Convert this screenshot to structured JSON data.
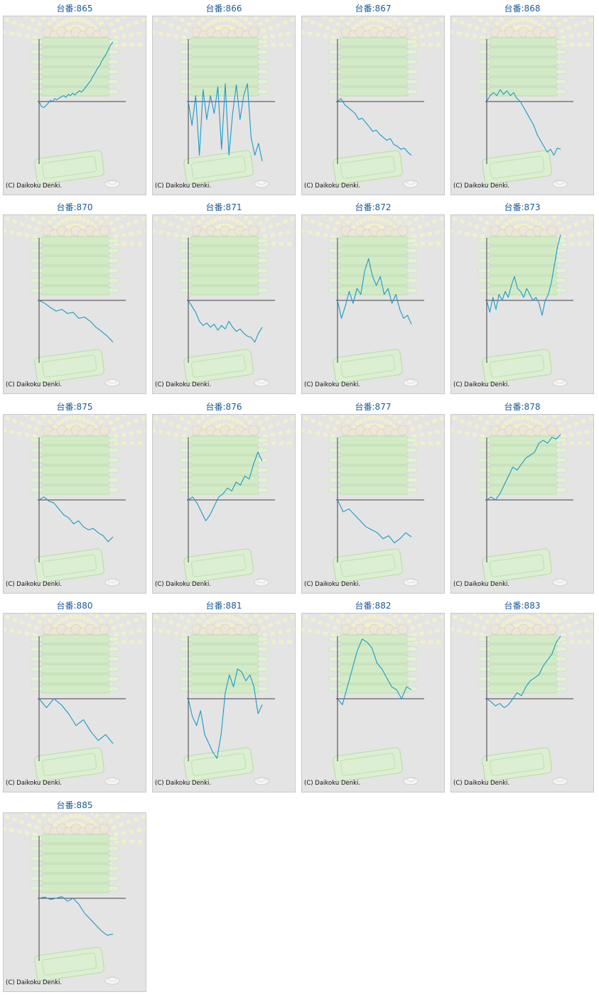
{
  "copyright": "(C) Daikoku Denki.",
  "colors": {
    "title": "#1a5a9a",
    "line": "#1a9ac8",
    "axis": "#404040",
    "panel": "#e4e4e4"
  },
  "chart_data": [
    {
      "type": "line",
      "title": "台番:865",
      "values": [
        0,
        -0.08,
        -0.1,
        -0.07,
        -0.03,
        0.02,
        0.0,
        0.05,
        0.03,
        0.06,
        0.08,
        0.1,
        0.07,
        0.12,
        0.1,
        0.14,
        0.11,
        0.15,
        0.18,
        0.16,
        0.2,
        0.25,
        0.3,
        0.35,
        0.42,
        0.48,
        0.55,
        0.6,
        0.68,
        0.74,
        0.8,
        0.88,
        0.95,
        1.0
      ]
    },
    {
      "type": "line",
      "title": "台番:866",
      "values": [
        0,
        -0.4,
        0.1,
        -0.9,
        0.2,
        -0.3,
        0.1,
        -0.2,
        0.25,
        -0.8,
        0.3,
        -0.9,
        -0.2,
        0.28,
        -0.3,
        0.1,
        0.3,
        -0.6,
        -0.9,
        -0.7,
        -1.0
      ]
    },
    {
      "type": "line",
      "title": "台番:867",
      "values": [
        0,
        0.05,
        -0.05,
        -0.1,
        -0.15,
        -0.2,
        -0.3,
        -0.28,
        -0.35,
        -0.42,
        -0.5,
        -0.48,
        -0.55,
        -0.6,
        -0.65,
        -0.62,
        -0.72,
        -0.75,
        -0.8,
        -0.78,
        -0.85,
        -0.9
      ]
    },
    {
      "type": "line",
      "title": "台番:868",
      "values": [
        0,
        0.1,
        0.15,
        0.1,
        0.2,
        0.12,
        0.18,
        0.1,
        0.15,
        0.05,
        0.0,
        -0.1,
        -0.2,
        -0.3,
        -0.4,
        -0.55,
        -0.65,
        -0.75,
        -0.85,
        -0.8,
        -0.9,
        -0.78,
        -0.8
      ]
    },
    {
      "type": "line",
      "title": "台番:870",
      "values": [
        0,
        -0.05,
        -0.12,
        -0.18,
        -0.15,
        -0.22,
        -0.2,
        -0.3,
        -0.28,
        -0.35,
        -0.45,
        -0.52,
        -0.6,
        -0.7
      ]
    },
    {
      "type": "line",
      "title": "台番:871",
      "values": [
        0,
        -0.1,
        -0.2,
        -0.35,
        -0.42,
        -0.38,
        -0.45,
        -0.4,
        -0.5,
        -0.42,
        -0.48,
        -0.35,
        -0.45,
        -0.52,
        -0.48,
        -0.55,
        -0.6,
        -0.62,
        -0.7,
        -0.55,
        -0.45
      ]
    },
    {
      "type": "line",
      "title": "台番:872",
      "values": [
        0,
        -0.3,
        -0.1,
        0.15,
        -0.05,
        0.2,
        0.1,
        0.5,
        0.7,
        0.4,
        0.25,
        0.4,
        0.1,
        0.2,
        -0.05,
        0.1,
        -0.15,
        -0.3,
        -0.25,
        -0.4
      ]
    },
    {
      "type": "line",
      "title": "台番:873",
      "values": [
        0,
        -0.2,
        0.05,
        -0.15,
        0.1,
        0.0,
        0.15,
        0.05,
        0.25,
        0.4,
        0.2,
        0.15,
        0.05,
        0.2,
        0.1,
        0.0,
        0.05,
        -0.05,
        -0.25,
        0.0,
        0.1,
        0.3,
        0.6,
        0.9,
        1.1
      ]
    },
    {
      "type": "line",
      "title": "台番:875",
      "values": [
        0,
        0.05,
        -0.02,
        -0.05,
        -0.15,
        -0.25,
        -0.3,
        -0.4,
        -0.35,
        -0.45,
        -0.5,
        -0.48,
        -0.55,
        -0.6,
        -0.7,
        -0.62
      ]
    },
    {
      "type": "line",
      "title": "台番:876",
      "values": [
        0,
        0.05,
        -0.05,
        -0.2,
        -0.35,
        -0.25,
        -0.1,
        0.05,
        0.1,
        0.2,
        0.15,
        0.3,
        0.25,
        0.4,
        0.35,
        0.6,
        0.8,
        0.65
      ]
    },
    {
      "type": "line",
      "title": "台番:877",
      "values": [
        0,
        -0.2,
        -0.15,
        -0.25,
        -0.35,
        -0.45,
        -0.5,
        -0.55,
        -0.65,
        -0.6,
        -0.72,
        -0.65,
        -0.55,
        -0.62
      ]
    },
    {
      "type": "line",
      "title": "台番:878",
      "values": [
        0,
        0.05,
        0.0,
        0.1,
        0.25,
        0.4,
        0.55,
        0.5,
        0.6,
        0.7,
        0.75,
        0.8,
        0.95,
        1.0,
        0.95,
        1.05,
        1.02,
        1.1
      ]
    },
    {
      "type": "line",
      "title": "台番:880",
      "values": [
        0,
        -0.15,
        0.0,
        -0.1,
        -0.25,
        -0.45,
        -0.35,
        -0.55,
        -0.7,
        -0.6,
        -0.75
      ]
    },
    {
      "type": "line",
      "title": "台番:881",
      "values": [
        0,
        -0.3,
        -0.45,
        -0.2,
        -0.6,
        -0.75,
        -0.9,
        -1.0,
        -0.6,
        0.1,
        0.4,
        0.2,
        0.5,
        0.45,
        0.3,
        0.4,
        0.2,
        -0.25,
        -0.1
      ]
    },
    {
      "type": "line",
      "title": "台番:882",
      "values": [
        0,
        -0.1,
        0.2,
        0.5,
        0.8,
        1.0,
        0.95,
        0.85,
        0.6,
        0.5,
        0.35,
        0.2,
        0.15,
        0.0,
        0.2,
        0.15
      ]
    },
    {
      "type": "line",
      "title": "台番:883",
      "values": [
        0,
        -0.05,
        -0.12,
        -0.08,
        -0.15,
        -0.1,
        0.0,
        0.1,
        0.05,
        0.2,
        0.3,
        0.35,
        0.4,
        0.55,
        0.65,
        0.75,
        0.95,
        1.05
      ]
    },
    {
      "type": "line",
      "title": "台番:885",
      "values": [
        0,
        0.02,
        -0.02,
        0.0,
        0.03,
        -0.05,
        0.0,
        -0.1,
        -0.25,
        -0.35,
        -0.45,
        -0.55,
        -0.62,
        -0.6
      ]
    }
  ]
}
